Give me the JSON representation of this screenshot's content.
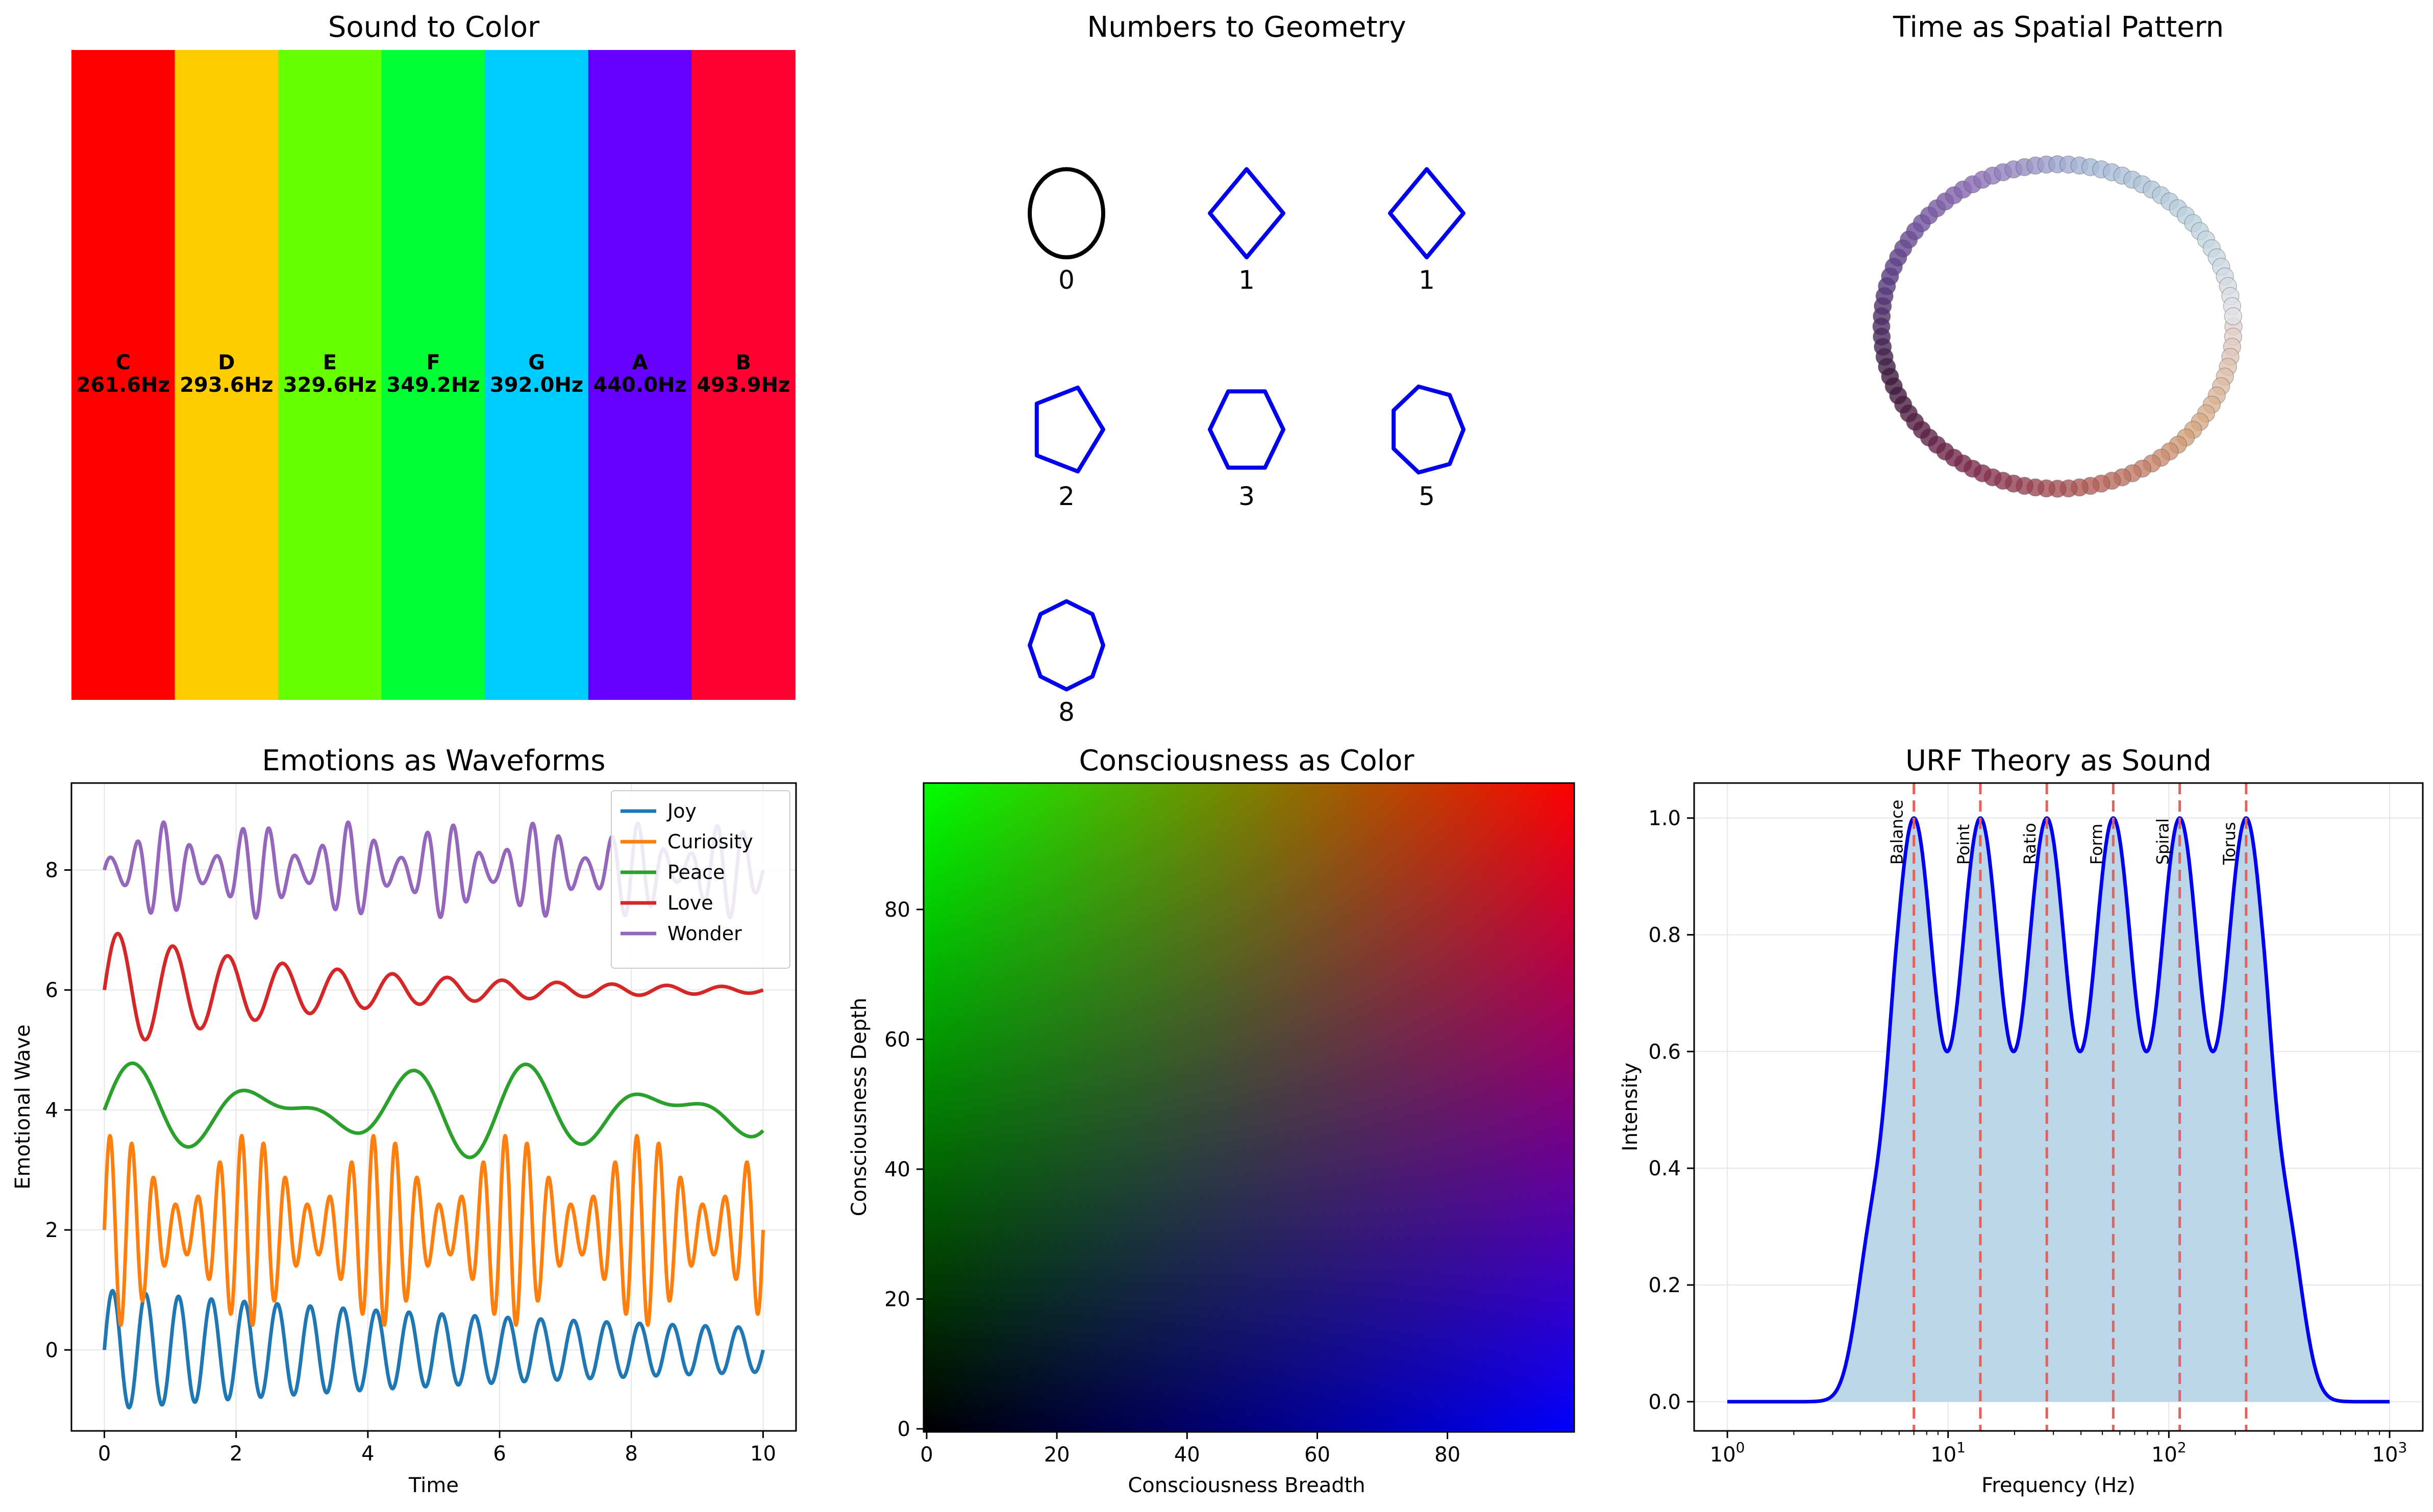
{
  "chart_data": [
    {
      "type": "bar",
      "title": "Sound to Color",
      "categories": [
        "C",
        "D",
        "E",
        "F",
        "G",
        "A",
        "B"
      ],
      "freq_labels": [
        "261.6Hz",
        "293.6Hz",
        "329.6Hz",
        "349.2Hz",
        "392.0Hz",
        "440.0Hz",
        "493.9Hz"
      ],
      "values": [
        261.6,
        293.6,
        329.6,
        349.2,
        392.0,
        440.0,
        493.9
      ],
      "colors": [
        "#ff0000",
        "#ffcc00",
        "#66ff00",
        "#00ff33",
        "#00ccff",
        "#6600ff",
        "#ff0033"
      ]
    },
    {
      "type": "diagram",
      "title": "Numbers to Geometry",
      "numbers": [
        0,
        1,
        1,
        2,
        3,
        5,
        8
      ],
      "labels": [
        "0",
        "1",
        "1",
        "2",
        "3",
        "5",
        "8"
      ],
      "shape_sides": [
        0,
        4,
        4,
        5,
        6,
        7,
        8
      ],
      "stroke_colors": [
        "#000000",
        "#0000ee",
        "#0000ee",
        "#0000ee",
        "#0000ee",
        "#0000ee",
        "#0000ee"
      ]
    },
    {
      "type": "scatter",
      "title": "Time as Spatial Pattern",
      "points": 100,
      "color_stops": [
        "#e4d2cf",
        "#d6a77f",
        "#b25e57",
        "#7e2b4e",
        "#3e1a3d",
        "#5a3e86",
        "#8a6ab4",
        "#a5b8d6",
        "#bcd3de",
        "#e4e1e6"
      ]
    },
    {
      "type": "line",
      "title": "Emotions as Waveforms",
      "xlabel": "Time",
      "ylabel": "Emotional Wave",
      "xlim": [
        -0.5,
        10.5
      ],
      "ylim": [
        -1.35,
        9.45
      ],
      "xticks": [
        "0",
        "2",
        "4",
        "6",
        "8",
        "10"
      ],
      "yticks": [
        "0",
        "2",
        "4",
        "6",
        "8"
      ],
      "legend_position": "top-right",
      "series": [
        {
          "name": "Joy",
          "color": "#1f77b4",
          "offset": 0,
          "amplitude": 1,
          "frequency": 2,
          "decay": 0.1,
          "mod_frequency": 0
        },
        {
          "name": "Curiosity",
          "color": "#ff7f0e",
          "offset": 2,
          "amplitude": 1,
          "frequency": 3,
          "decay": 0,
          "mod_frequency": 0.5
        },
        {
          "name": "Peace",
          "color": "#2ca02c",
          "offset": 4,
          "amplitude": 0.5,
          "frequency": 0.5,
          "decay": 0,
          "mod_frequency": 0.3
        },
        {
          "name": "Love",
          "color": "#d62728",
          "offset": 6,
          "amplitude": 1,
          "frequency": 1.2,
          "decay": 0.3,
          "mod_frequency": 0
        },
        {
          "name": "Wonder",
          "color": "#9467bd",
          "offset": 8,
          "amplitude": 0.5,
          "frequency": 2.5,
          "decay": 0,
          "mod_frequency": 0.7
        }
      ]
    },
    {
      "type": "heatmap",
      "title": "Consciousness as Color",
      "xlabel": "Consciousness Breadth",
      "ylabel": "Consciousness Depth",
      "xlim": [
        0,
        99
      ],
      "ylim": [
        0,
        99
      ],
      "xticks": [
        "0",
        "20",
        "40",
        "60",
        "80"
      ],
      "yticks": [
        "0",
        "20",
        "40",
        "60",
        "80"
      ],
      "corner_colors": {
        "bottom_left": "#000000",
        "top_left": "#00ff00",
        "top_right": "#ff0000",
        "bottom_right": "#0000ff"
      }
    },
    {
      "type": "area",
      "title": "URF Theory as Sound",
      "xlabel": "Frequency (Hz)",
      "ylabel": "Intensity",
      "xscale": "log",
      "xlim": [
        0.707,
        1414
      ],
      "ylim": [
        -0.05,
        1.06
      ],
      "xticks": [
        "10^0",
        "10^1",
        "10^2",
        "10^3"
      ],
      "yticks": [
        "0.0",
        "0.2",
        "0.4",
        "0.6",
        "0.8",
        "1.0"
      ],
      "peak_frequencies": [
        7,
        14,
        28,
        56,
        112,
        224
      ],
      "peak_labels": [
        "Balance",
        "Point",
        "Ratio",
        "Form",
        "Spiral",
        "Torus"
      ],
      "peak_intensity": 1.0,
      "trough_intensity": 0.6,
      "line_color": "#0000ee",
      "fill_color": "#b7d3e8",
      "marker_color": "#e8605a"
    }
  ]
}
